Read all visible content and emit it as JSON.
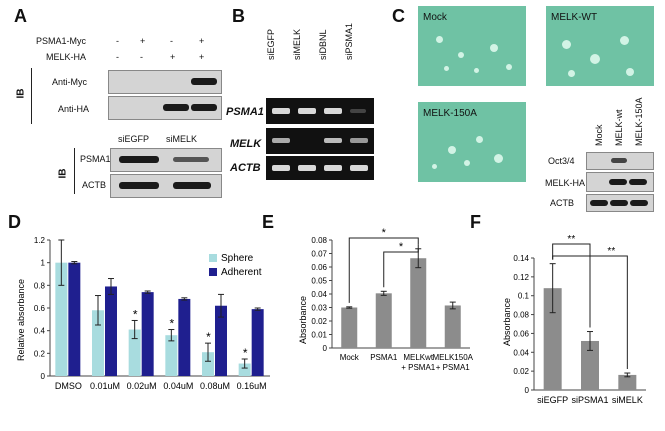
{
  "figure": {
    "panel_letters": [
      "A",
      "B",
      "C",
      "D",
      "E",
      "F"
    ]
  },
  "panelA": {
    "rows": [
      {
        "label": "PSMA1-Myc",
        "marks": [
          "-",
          "+",
          "-",
          "+"
        ]
      },
      {
        "label": "MELK-HA",
        "marks": [
          "-",
          "-",
          "+",
          "+"
        ]
      }
    ],
    "ib_label": "IB",
    "blot1_labels": [
      "Anti-Myc",
      "Anti-HA"
    ],
    "lower_lanes": [
      "siEGFP",
      "siMELK"
    ],
    "lower_blots": [
      "PSMA1",
      "ACTB"
    ]
  },
  "panelB": {
    "lanes": [
      "siEGFP",
      "siMELK",
      "siDBNL",
      "siPSMA1"
    ],
    "rows": [
      "PSMA1",
      "MELK",
      "ACTB"
    ]
  },
  "panelC": {
    "images": [
      "Mock",
      "MELK-WT",
      "MELK-150A"
    ],
    "lanes": [
      "Mock",
      "MELK-wt",
      "MELK-150A"
    ],
    "blots": [
      "Oct3/4",
      "MELK-HA",
      "ACTB"
    ]
  },
  "colors": {
    "sphere": "#a8dcdf",
    "adherent": "#1f1f8f",
    "gray_bar": "#8c8c8c"
  },
  "chart_data": [
    {
      "panel": "D",
      "type": "bar",
      "categories": [
        "DMSO",
        "0.01uM",
        "0.02uM",
        "0.04uM",
        "0.08uM",
        "0.16uM"
      ],
      "series": [
        {
          "name": "Sphere",
          "values": [
            1.0,
            0.58,
            0.41,
            0.36,
            0.21,
            0.11
          ],
          "errors": [
            0.2,
            0.13,
            0.08,
            0.05,
            0.08,
            0.04
          ]
        },
        {
          "name": "Adherent",
          "values": [
            1.0,
            0.79,
            0.74,
            0.68,
            0.62,
            0.59
          ],
          "errors": [
            0.01,
            0.07,
            0.01,
            0.01,
            0.1,
            0.01
          ]
        }
      ],
      "significance": [
        "",
        "",
        "*",
        "*",
        "*",
        "*"
      ],
      "ylabel": "Relative absorbance",
      "ylim": [
        0,
        1.2
      ],
      "yticks": [
        "0",
        "0.2",
        "0.4",
        "0.6",
        "0.8",
        "1",
        "1.2"
      ],
      "legend_position": "top-right"
    },
    {
      "panel": "E",
      "type": "bar",
      "categories": [
        "Mock",
        "PSMA1",
        "MELKwt\n+ PSMA1",
        "MELK150A\n+ PSMA1"
      ],
      "values": [
        0.03,
        0.0405,
        0.0665,
        0.0315
      ],
      "errors": [
        0.0005,
        0.0015,
        0.007,
        0.0025
      ],
      "ylabel": "Absorbance",
      "ylim": [
        0,
        0.08
      ],
      "yticks": [
        "0",
        "0.01",
        "0.02",
        "0.03",
        "0.04",
        "0.05",
        "0.06",
        "0.07",
        "0.08"
      ],
      "brackets": [
        {
          "from": 0,
          "to": 2,
          "label": "*"
        },
        {
          "from": 1,
          "to": 2,
          "label": "*"
        }
      ]
    },
    {
      "panel": "F",
      "type": "bar",
      "categories": [
        "siEGFP",
        "siPSMA1",
        "siMELK"
      ],
      "values": [
        0.108,
        0.052,
        0.016
      ],
      "errors": [
        0.026,
        0.01,
        0.002
      ],
      "ylabel": "Absorbance",
      "ylim": [
        0,
        0.14
      ],
      "yticks": [
        "0",
        "0.02",
        "0.04",
        "0.06",
        "0.08",
        "0.1",
        "0.12",
        "0.14"
      ],
      "brackets": [
        {
          "from": 0,
          "to": 1,
          "label": "**"
        },
        {
          "from": 0,
          "to": 2,
          "label": "**"
        }
      ]
    }
  ]
}
